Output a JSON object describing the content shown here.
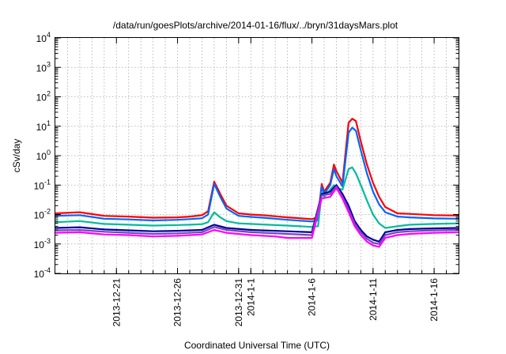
{
  "chart_data": {
    "type": "line",
    "title": "/data/run/goesPlots/archive/2014-01-16/flux/../bryn/31daysMars.plot",
    "xlabel": "Coordinated Universal Time (UTC)",
    "ylabel": "cSv/day",
    "yscale": "log",
    "ylim_exponents": [
      -4,
      4
    ],
    "y_tick_labels": [
      {
        "base": "10",
        "exp": "-4"
      },
      {
        "base": "10",
        "exp": "-3"
      },
      {
        "base": "10",
        "exp": "-2"
      },
      {
        "base": "10",
        "exp": "-1"
      },
      {
        "base": "10",
        "exp": "0"
      },
      {
        "base": "10",
        "exp": "1"
      },
      {
        "base": "10",
        "exp": "2"
      },
      {
        "base": "10",
        "exp": "3"
      },
      {
        "base": "10",
        "exp": "4"
      }
    ],
    "xlim": [
      "2013-12-16",
      "2014-01-18"
    ],
    "x_tick_labels": [
      "2013-12-21",
      "2013-12-26",
      "2013-12-31",
      "2014-1-1",
      "2014-1-6",
      "2014-1-11",
      "2014-1-16"
    ],
    "x_tick_dates": [
      "2013-12-21",
      "2013-12-26",
      "2013-12-31",
      "2014-01-01",
      "2014-01-06",
      "2014-01-11",
      "2014-01-16"
    ],
    "grid": true,
    "legend": "none",
    "series": [
      {
        "color": "#ff0000",
        "points": [
          [
            "2013-12-16",
            0.011
          ],
          [
            "2013-12-18",
            0.012
          ],
          [
            "2013-12-20",
            0.009
          ],
          [
            "2013-12-22",
            0.0085
          ],
          [
            "2013-12-24",
            0.0078
          ],
          [
            "2013-12-26",
            0.008
          ],
          [
            "2013-12-27",
            0.0085
          ],
          [
            "2013-12-28",
            0.0095
          ],
          [
            "2013-12-28.5",
            0.013
          ],
          [
            "2013-12-29",
            0.13
          ],
          [
            "2013-12-29.5",
            0.05
          ],
          [
            "2013-12-30",
            0.02
          ],
          [
            "2013-12-31",
            0.011
          ],
          [
            "2014-01-01",
            0.01
          ],
          [
            "2014-01-02",
            0.0095
          ],
          [
            "2014-01-04",
            0.008
          ],
          [
            "2014-01-06",
            0.007
          ],
          [
            "2014-01-06.5",
            0.008
          ],
          [
            "2014-01-06.8",
            0.11
          ],
          [
            "2014-01-07",
            0.06
          ],
          [
            "2014-01-07.5",
            0.12
          ],
          [
            "2014-01-07.8",
            0.5
          ],
          [
            "2014-01-08",
            0.3
          ],
          [
            "2014-01-08.5",
            0.12
          ],
          [
            "2014-01-09",
            13
          ],
          [
            "2014-01-09.3",
            18
          ],
          [
            "2014-01-09.6",
            15
          ],
          [
            "2014-01-10",
            3
          ],
          [
            "2014-01-10.5",
            0.5
          ],
          [
            "2014-01-11",
            0.12
          ],
          [
            "2014-01-11.5",
            0.04
          ],
          [
            "2014-01-12",
            0.018
          ],
          [
            "2014-01-13",
            0.011
          ],
          [
            "2014-01-14",
            0.0105
          ],
          [
            "2014-01-16",
            0.0095
          ],
          [
            "2014-01-18",
            0.0092
          ]
        ]
      },
      {
        "color": "#0066ff",
        "points": [
          [
            "2013-12-16",
            0.009
          ],
          [
            "2013-12-18",
            0.0095
          ],
          [
            "2013-12-20",
            0.0072
          ],
          [
            "2013-12-22",
            0.0068
          ],
          [
            "2013-12-24",
            0.0063
          ],
          [
            "2013-12-26",
            0.0066
          ],
          [
            "2013-12-27",
            0.007
          ],
          [
            "2013-12-28",
            0.0075
          ],
          [
            "2013-12-28.5",
            0.01
          ],
          [
            "2013-12-29",
            0.11
          ],
          [
            "2013-12-29.5",
            0.04
          ],
          [
            "2013-12-30",
            0.016
          ],
          [
            "2013-12-31",
            0.009
          ],
          [
            "2014-01-01",
            0.0083
          ],
          [
            "2014-01-02",
            0.0078
          ],
          [
            "2014-01-04",
            0.0066
          ],
          [
            "2014-01-06",
            0.0058
          ],
          [
            "2014-01-06.5",
            0.0065
          ],
          [
            "2014-01-06.8",
            0.09
          ],
          [
            "2014-01-07",
            0.05
          ],
          [
            "2014-01-07.5",
            0.1
          ],
          [
            "2014-01-07.8",
            0.35
          ],
          [
            "2014-01-08",
            0.2
          ],
          [
            "2014-01-08.5",
            0.09
          ],
          [
            "2014-01-09",
            6
          ],
          [
            "2014-01-09.3",
            9
          ],
          [
            "2014-01-09.6",
            7
          ],
          [
            "2014-01-10",
            1.5
          ],
          [
            "2014-01-10.5",
            0.25
          ],
          [
            "2014-01-11",
            0.06
          ],
          [
            "2014-01-11.5",
            0.022
          ],
          [
            "2014-01-12",
            0.012
          ],
          [
            "2014-01-13",
            0.0085
          ],
          [
            "2014-01-14",
            0.008
          ],
          [
            "2014-01-16",
            0.0074
          ],
          [
            "2014-01-18",
            0.0072
          ]
        ]
      },
      {
        "color": "#00bb99",
        "points": [
          [
            "2013-12-16",
            0.0055
          ],
          [
            "2013-12-18",
            0.006
          ],
          [
            "2013-12-20",
            0.0048
          ],
          [
            "2013-12-22",
            0.0045
          ],
          [
            "2013-12-24",
            0.0042
          ],
          [
            "2013-12-26",
            0.0044
          ],
          [
            "2013-12-27",
            0.0045
          ],
          [
            "2013-12-28",
            0.0047
          ],
          [
            "2013-12-28.5",
            0.0055
          ],
          [
            "2013-12-29",
            0.012
          ],
          [
            "2013-12-29.5",
            0.008
          ],
          [
            "2013-12-30",
            0.006
          ],
          [
            "2013-12-31",
            0.005
          ],
          [
            "2014-01-01",
            0.0048
          ],
          [
            "2014-01-02",
            0.0046
          ],
          [
            "2014-01-04",
            0.0042
          ],
          [
            "2014-01-06",
            0.0038
          ],
          [
            "2014-01-06.5",
            0.004
          ],
          [
            "2014-01-06.8",
            0.055
          ],
          [
            "2014-01-07",
            0.04
          ],
          [
            "2014-01-07.5",
            0.07
          ],
          [
            "2014-01-07.8",
            0.1
          ],
          [
            "2014-01-08",
            0.08
          ],
          [
            "2014-01-08.5",
            0.07
          ],
          [
            "2014-01-09",
            0.35
          ],
          [
            "2014-01-09.3",
            0.4
          ],
          [
            "2014-01-09.6",
            0.25
          ],
          [
            "2014-01-10",
            0.1
          ],
          [
            "2014-01-10.5",
            0.03
          ],
          [
            "2014-01-11",
            0.01
          ],
          [
            "2014-01-11.5",
            0.005
          ],
          [
            "2014-01-12",
            0.0035
          ],
          [
            "2014-01-13",
            0.004
          ],
          [
            "2014-01-14",
            0.0045
          ],
          [
            "2014-01-16",
            0.0048
          ],
          [
            "2014-01-18",
            0.005
          ]
        ]
      },
      {
        "color": "#000099",
        "points": [
          [
            "2013-12-16",
            0.0035
          ],
          [
            "2013-12-18",
            0.0037
          ],
          [
            "2013-12-20",
            0.0031
          ],
          [
            "2013-12-22",
            0.0029
          ],
          [
            "2013-12-24",
            0.0027
          ],
          [
            "2013-12-26",
            0.0028
          ],
          [
            "2013-12-28",
            0.003
          ],
          [
            "2013-12-29",
            0.0045
          ],
          [
            "2013-12-30",
            0.0035
          ],
          [
            "2014-01-01",
            0.003
          ],
          [
            "2014-01-04",
            0.0027
          ],
          [
            "2014-01-06",
            0.0025
          ],
          [
            "2014-01-06.8",
            0.05
          ],
          [
            "2014-01-07.5",
            0.06
          ],
          [
            "2014-01-08",
            0.1
          ],
          [
            "2014-01-08.5",
            0.05
          ],
          [
            "2014-01-09",
            0.02
          ],
          [
            "2014-01-09.5",
            0.006
          ],
          [
            "2014-01-10",
            0.003
          ],
          [
            "2014-01-10.5",
            0.0018
          ],
          [
            "2014-01-11",
            0.0014
          ],
          [
            "2014-01-11.5",
            0.0012
          ],
          [
            "2014-01-12",
            0.0025
          ],
          [
            "2014-01-13",
            0.003
          ],
          [
            "2014-01-14",
            0.0032
          ],
          [
            "2014-01-16",
            0.0034
          ],
          [
            "2014-01-18",
            0.0035
          ]
        ]
      },
      {
        "color": "#7744bb",
        "points": [
          [
            "2013-12-16",
            0.0029
          ],
          [
            "2013-12-18",
            0.003
          ],
          [
            "2013-12-20",
            0.0026
          ],
          [
            "2013-12-22",
            0.0024
          ],
          [
            "2013-12-24",
            0.0022
          ],
          [
            "2013-12-26",
            0.0023
          ],
          [
            "2013-12-28",
            0.0025
          ],
          [
            "2013-12-29",
            0.0038
          ],
          [
            "2013-12-30",
            0.003
          ],
          [
            "2014-01-01",
            0.0025
          ],
          [
            "2014-01-04",
            0.0022
          ],
          [
            "2014-01-06",
            0.002
          ],
          [
            "2014-01-06.8",
            0.045
          ],
          [
            "2014-01-07.5",
            0.05
          ],
          [
            "2014-01-08",
            0.09
          ],
          [
            "2014-01-08.5",
            0.04
          ],
          [
            "2014-01-09",
            0.015
          ],
          [
            "2014-01-09.5",
            0.005
          ],
          [
            "2014-01-10",
            0.0025
          ],
          [
            "2014-01-10.5",
            0.0015
          ],
          [
            "2014-01-11",
            0.0011
          ],
          [
            "2014-01-11.5",
            0.001
          ],
          [
            "2014-01-12",
            0.002
          ],
          [
            "2014-01-13",
            0.0025
          ],
          [
            "2014-01-14",
            0.0027
          ],
          [
            "2014-01-16",
            0.0029
          ],
          [
            "2014-01-18",
            0.003
          ]
        ]
      },
      {
        "color": "#ff00ff",
        "points": [
          [
            "2013-12-16",
            0.0024
          ],
          [
            "2013-12-18",
            0.0025
          ],
          [
            "2013-12-20",
            0.0021
          ],
          [
            "2013-12-22",
            0.002
          ],
          [
            "2013-12-24",
            0.0018
          ],
          [
            "2013-12-26",
            0.0019
          ],
          [
            "2013-12-28",
            0.0021
          ],
          [
            "2013-12-29",
            0.003
          ],
          [
            "2013-12-30",
            0.0024
          ],
          [
            "2014-01-01",
            0.002
          ],
          [
            "2014-01-03",
            0.0018
          ],
          [
            "2014-01-04",
            0.0016
          ],
          [
            "2014-01-06",
            0.0016
          ],
          [
            "2014-01-06.8",
            0.035
          ],
          [
            "2014-01-07.5",
            0.04
          ],
          [
            "2014-01-08",
            0.08
          ],
          [
            "2014-01-08.5",
            0.035
          ],
          [
            "2014-01-09",
            0.012
          ],
          [
            "2014-01-09.5",
            0.004
          ],
          [
            "2014-01-10",
            0.002
          ],
          [
            "2014-01-10.5",
            0.0012
          ],
          [
            "2014-01-11",
            0.0009
          ],
          [
            "2014-01-11.5",
            0.0008
          ],
          [
            "2014-01-12",
            0.0016
          ],
          [
            "2014-01-13",
            0.002
          ],
          [
            "2014-01-14",
            0.0022
          ],
          [
            "2014-01-16",
            0.0024
          ],
          [
            "2014-01-18",
            0.0025
          ]
        ]
      }
    ]
  }
}
